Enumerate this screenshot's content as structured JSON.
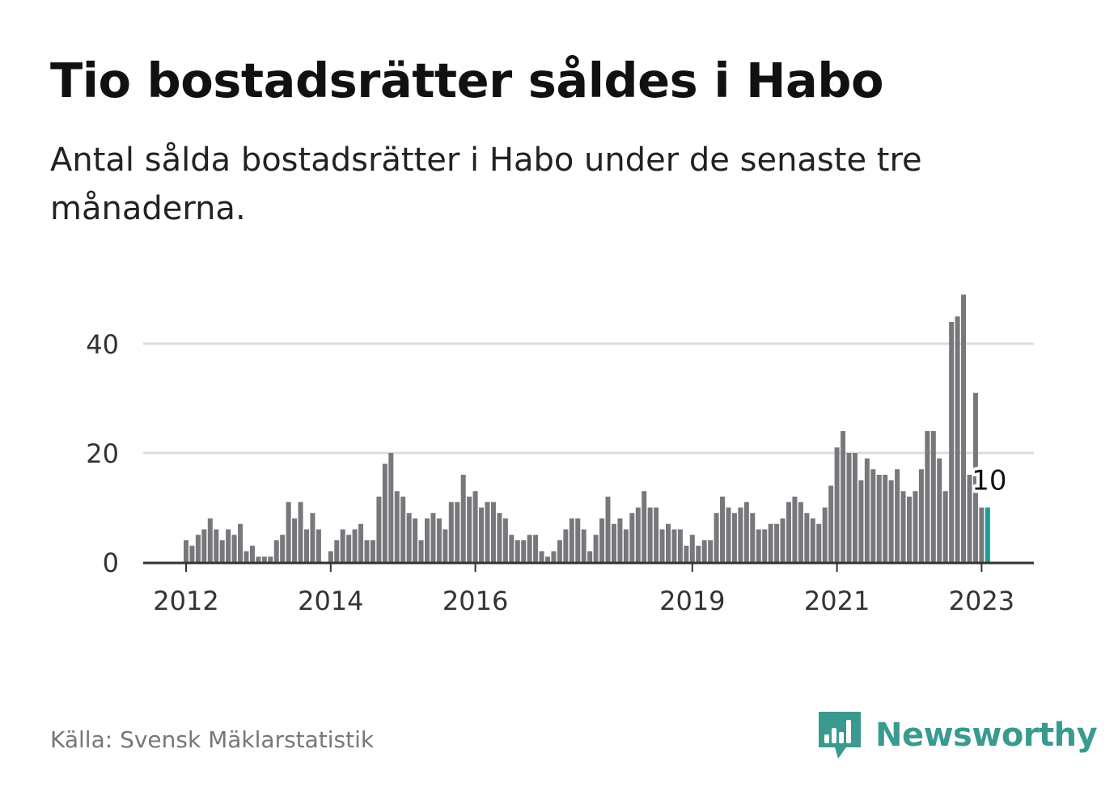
{
  "title": "Tio bostadsrätter såldes i Habo",
  "subtitle": "Antal sålda bostadsrätter i Habo under de senaste tre månaderna.",
  "source": "Källa: Svensk Mäklarstatistik",
  "brand": {
    "name": "Newsworthy",
    "color": "#3a9a90"
  },
  "colors": {
    "bar": "#78777c",
    "highlight": "#1a9d96",
    "grid": "#dddddd",
    "axis": "#333333"
  },
  "chart_data": {
    "type": "bar",
    "title": "Tio bostadsrätter såldes i Habo",
    "xlabel": "",
    "ylabel": "",
    "ylim": [
      0,
      50
    ],
    "grid": true,
    "yticks": [
      0,
      20,
      40
    ],
    "x_tick_labels": [
      {
        "label": "2012",
        "index": 0
      },
      {
        "label": "2014",
        "index": 24
      },
      {
        "label": "2016",
        "index": 48
      },
      {
        "label": "2019",
        "index": 84
      },
      {
        "label": "2021",
        "index": 108
      },
      {
        "label": "2023",
        "index": 132
      }
    ],
    "start_index": 0,
    "values": [
      4,
      3,
      5,
      6,
      8,
      6,
      4,
      6,
      5,
      7,
      2,
      3,
      1,
      1,
      1,
      4,
      5,
      11,
      8,
      11,
      6,
      9,
      6,
      0,
      2,
      4,
      6,
      5,
      6,
      7,
      4,
      4,
      12,
      18,
      20,
      13,
      12,
      9,
      8,
      4,
      8,
      9,
      8,
      6,
      11,
      11,
      16,
      12,
      13,
      10,
      11,
      11,
      9,
      8,
      5,
      4,
      4,
      5,
      5,
      2,
      1,
      2,
      4,
      6,
      8,
      8,
      6,
      2,
      5,
      8,
      12,
      7,
      8,
      6,
      9,
      10,
      13,
      10,
      10,
      6,
      7,
      6,
      6,
      3,
      5,
      3,
      4,
      4,
      9,
      12,
      10,
      9,
      10,
      11,
      9,
      6,
      6,
      7,
      7,
      8,
      11,
      12,
      11,
      9,
      8,
      7,
      10,
      14,
      21,
      24,
      20,
      20,
      15,
      19,
      17,
      16,
      16,
      15,
      17,
      13,
      12,
      13,
      17,
      24,
      24,
      19,
      13,
      44,
      45,
      49,
      16,
      31,
      10
    ],
    "highlight": {
      "index": 133,
      "value": 10,
      "label": "10"
    }
  }
}
